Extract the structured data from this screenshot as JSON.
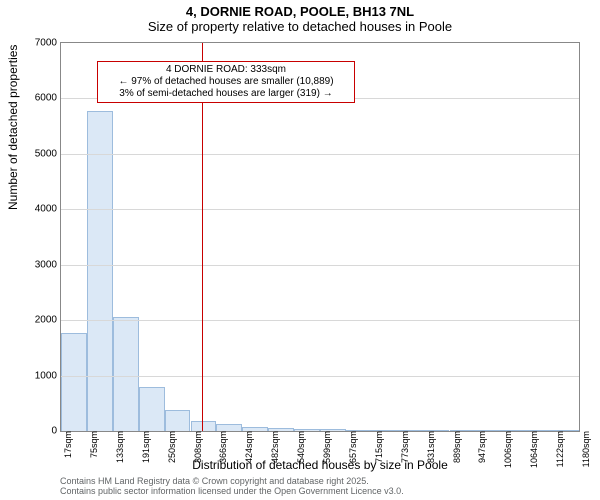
{
  "titles": {
    "line1": "4, DORNIE ROAD, POOLE, BH13 7NL",
    "line2": "Size of property relative to detached houses in Poole"
  },
  "ylabel": "Number of detached properties",
  "xlabel": "Distribution of detached houses by size in Poole",
  "credits": {
    "line1": "Contains HM Land Registry data © Crown copyright and database right 2025.",
    "line2": "Contains public sector information licensed under the Open Government Licence v3.0."
  },
  "chart": {
    "type": "histogram",
    "y_axis": {
      "min": 0,
      "max": 7000,
      "ticks": [
        0,
        1000,
        2000,
        3000,
        4000,
        5000,
        6000,
        7000
      ]
    },
    "x_axis": {
      "min": 17,
      "max": 1180,
      "tick_labels": [
        "17sqm",
        "75sqm",
        "133sqm",
        "191sqm",
        "250sqm",
        "308sqm",
        "366sqm",
        "424sqm",
        "482sqm",
        "540sqm",
        "599sqm",
        "657sqm",
        "715sqm",
        "773sqm",
        "831sqm",
        "889sqm",
        "947sqm",
        "1006sqm",
        "1064sqm",
        "1122sqm",
        "1180sqm"
      ]
    },
    "bars": {
      "fill": "#dbe8f6",
      "stroke": "#9dbcdd",
      "values": [
        1770,
        5780,
        2050,
        790,
        380,
        180,
        120,
        70,
        50,
        40,
        30,
        20,
        15,
        10,
        8,
        6,
        5,
        4,
        3,
        2
      ]
    },
    "marker": {
      "x_value": 333,
      "color": "#c80000"
    },
    "annotation": {
      "border_color": "#c80000",
      "lines": [
        "4 DORNIE ROAD: 333sqm",
        "← 97% of detached houses are smaller (10,889)",
        "3% of semi-detached houses are larger (319) →"
      ]
    },
    "grid_color": "#d8d8d8",
    "background_color": "#ffffff"
  }
}
